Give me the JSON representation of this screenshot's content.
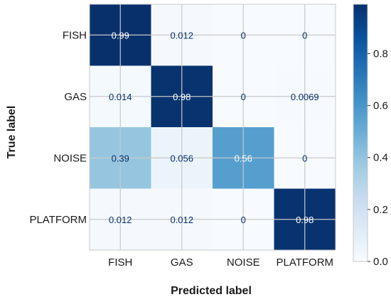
{
  "chart_data": {
    "type": "heatmap",
    "title": "",
    "xlabel": "Predicted label",
    "ylabel": "True label",
    "x_categories": [
      "FISH",
      "GAS",
      "NOISE",
      "PLATFORM"
    ],
    "y_categories": [
      "FISH",
      "GAS",
      "NOISE",
      "PLATFORM"
    ],
    "values": [
      [
        0.99,
        0.012,
        0,
        0
      ],
      [
        0.014,
        0.98,
        0,
        0.0069
      ],
      [
        0.39,
        0.056,
        0.56,
        0
      ],
      [
        0.012,
        0.012,
        0,
        0.98
      ]
    ],
    "cell_labels": [
      [
        "0.99",
        "0.012",
        "0",
        "0"
      ],
      [
        "0.014",
        "0.98",
        "0",
        "0.0069"
      ],
      [
        "0.39",
        "0.056",
        "0.56",
        "0"
      ],
      [
        "0.012",
        "0.012",
        "0",
        "0.98"
      ]
    ],
    "colormap": "Blues",
    "vmin": 0,
    "vmax": 0.99,
    "colorbar_ticks": [
      0.0,
      0.2,
      0.4,
      0.6,
      0.8
    ],
    "colorbar_tick_labels": [
      "0.0",
      "0.2",
      "0.4",
      "0.6",
      "0.8"
    ],
    "grid": true,
    "colors": {
      "blues_low": "#f7fbff",
      "blues_high": "#08306b",
      "grid": "#c8c8c8"
    }
  }
}
